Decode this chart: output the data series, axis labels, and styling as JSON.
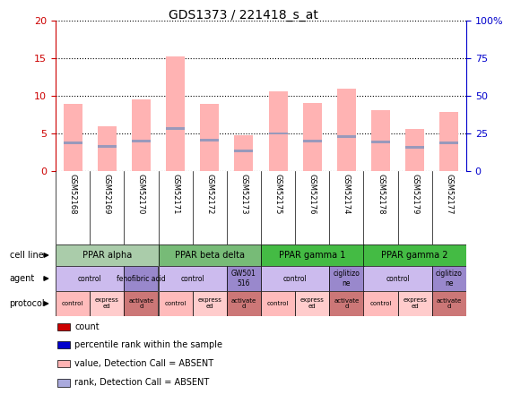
{
  "title": "GDS1373 / 221418_s_at",
  "samples": [
    "GSM52168",
    "GSM52169",
    "GSM52170",
    "GSM52171",
    "GSM52172",
    "GSM52173",
    "GSM52175",
    "GSM52176",
    "GSM52174",
    "GSM52178",
    "GSM52179",
    "GSM52177"
  ],
  "values": [
    8.9,
    6.0,
    9.5,
    15.2,
    8.9,
    4.8,
    10.6,
    9.0,
    11.0,
    8.1,
    5.6,
    7.8
  ],
  "ranks": [
    3.8,
    3.3,
    4.0,
    5.6,
    4.1,
    2.7,
    5.0,
    4.0,
    4.6,
    3.9,
    3.1,
    3.7
  ],
  "ylim_left": [
    0,
    20
  ],
  "ylim_right": [
    0,
    100
  ],
  "yticks_left": [
    0,
    5,
    10,
    15,
    20
  ],
  "yticks_right": [
    0,
    25,
    50,
    75,
    100
  ],
  "bar_color": "#FFB3B3",
  "rank_color": "#9999BB",
  "cell_lines": [
    {
      "label": "PPAR alpha",
      "start": 0,
      "end": 3,
      "color": "#AACCAA"
    },
    {
      "label": "PPAR beta delta",
      "start": 3,
      "end": 6,
      "color": "#77BB77"
    },
    {
      "label": "PPAR gamma 1",
      "start": 6,
      "end": 9,
      "color": "#44BB44"
    },
    {
      "label": "PPAR gamma 2",
      "start": 9,
      "end": 12,
      "color": "#44BB44"
    }
  ],
  "agents": [
    {
      "label": "control",
      "start": 0,
      "end": 2,
      "color": "#CCBBEE"
    },
    {
      "label": "fenofibric acid",
      "start": 2,
      "end": 3,
      "color": "#9988CC"
    },
    {
      "label": "control",
      "start": 3,
      "end": 5,
      "color": "#CCBBEE"
    },
    {
      "label": "GW501\n516",
      "start": 5,
      "end": 6,
      "color": "#9988CC"
    },
    {
      "label": "control",
      "start": 6,
      "end": 8,
      "color": "#CCBBEE"
    },
    {
      "label": "ciglitizo\nne",
      "start": 8,
      "end": 9,
      "color": "#9988CC"
    },
    {
      "label": "control",
      "start": 9,
      "end": 11,
      "color": "#CCBBEE"
    },
    {
      "label": "ciglitizo\nne",
      "start": 11,
      "end": 12,
      "color": "#9988CC"
    }
  ],
  "protocols": [
    {
      "label": "control",
      "start": 0,
      "end": 1,
      "color": "#FFBBBB"
    },
    {
      "label": "express\ned",
      "start": 1,
      "end": 2,
      "color": "#FFCCCC"
    },
    {
      "label": "activate\nd",
      "start": 2,
      "end": 3,
      "color": "#CC7777"
    },
    {
      "label": "control",
      "start": 3,
      "end": 4,
      "color": "#FFBBBB"
    },
    {
      "label": "express\ned",
      "start": 4,
      "end": 5,
      "color": "#FFCCCC"
    },
    {
      "label": "activate\nd",
      "start": 5,
      "end": 6,
      "color": "#CC7777"
    },
    {
      "label": "control",
      "start": 6,
      "end": 7,
      "color": "#FFBBBB"
    },
    {
      "label": "express\ned",
      "start": 7,
      "end": 8,
      "color": "#FFCCCC"
    },
    {
      "label": "activate\nd",
      "start": 8,
      "end": 9,
      "color": "#CC7777"
    },
    {
      "label": "control",
      "start": 9,
      "end": 10,
      "color": "#FFBBBB"
    },
    {
      "label": "express\ned",
      "start": 10,
      "end": 11,
      "color": "#FFCCCC"
    },
    {
      "label": "activate\nd",
      "start": 11,
      "end": 12,
      "color": "#CC7777"
    }
  ],
  "legend": [
    {
      "label": "count",
      "color": "#CC0000"
    },
    {
      "label": "percentile rank within the sample",
      "color": "#0000CC"
    },
    {
      "label": "value, Detection Call = ABSENT",
      "color": "#FFB3B3"
    },
    {
      "label": "rank, Detection Call = ABSENT",
      "color": "#AAAADD"
    }
  ],
  "bg_color": "#FFFFFF",
  "grid_color": "#000000",
  "left_ytick_color": "#CC0000",
  "right_ytick_color": "#0000CC"
}
